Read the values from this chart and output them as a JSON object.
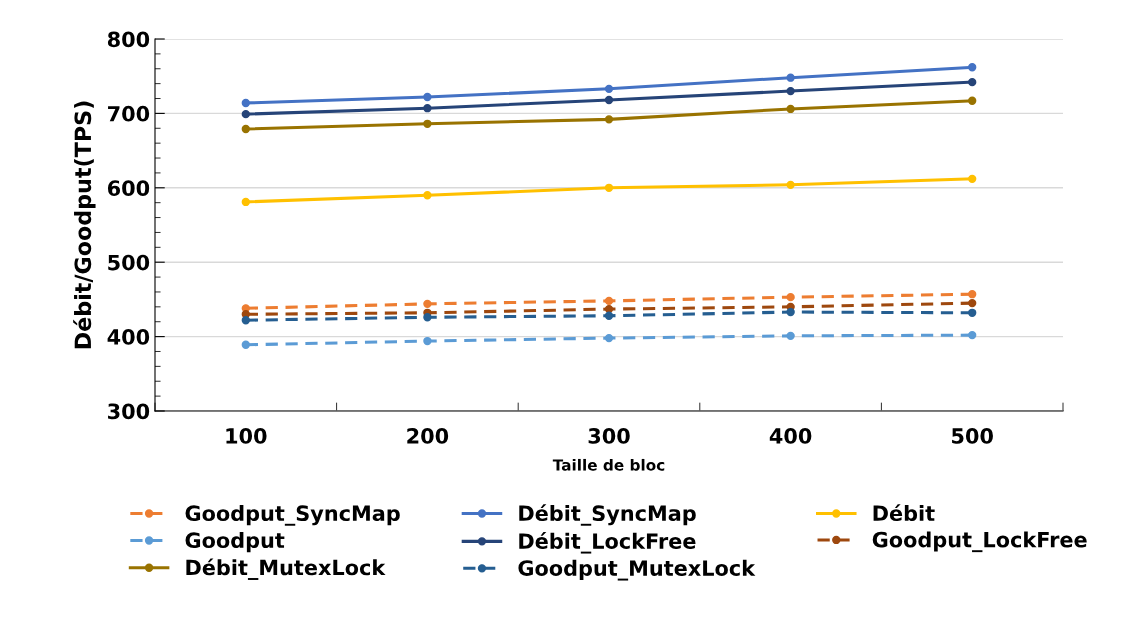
{
  "chart_data": {
    "type": "line",
    "xlabel": "Taille de bloc",
    "ylabel": "Débit/Goodput(TPS)",
    "categories": [
      "100",
      "200",
      "300",
      "400",
      "500"
    ],
    "ylim": [
      300,
      800
    ],
    "yticks": [
      300,
      400,
      500,
      600,
      700,
      800
    ],
    "grid": "y",
    "legend": "bottom",
    "marker": "circle",
    "series": [
      {
        "name": "Goodput_SyncMap",
        "color": "#ed7d31",
        "line_style": "dashed",
        "values": [
          438,
          444,
          448,
          453,
          457
        ]
      },
      {
        "name": "Débit_SyncMap",
        "color": "#4472c4",
        "line_style": "solid",
        "values": [
          714,
          722,
          733,
          748,
          762
        ]
      },
      {
        "name": "Débit",
        "color": "#ffc000",
        "line_style": "solid",
        "values": [
          581,
          590,
          600,
          604,
          612
        ]
      },
      {
        "name": "Goodput",
        "color": "#5b9bd5",
        "line_style": "dashed",
        "values": [
          389,
          394,
          398,
          401,
          402
        ]
      },
      {
        "name": "Débit_LockFree",
        "color": "#264478",
        "line_style": "solid",
        "values": [
          699,
          707,
          718,
          730,
          742
        ]
      },
      {
        "name": "Goodput_LockFree",
        "color": "#9e480e",
        "line_style": "dashed",
        "values": [
          430,
          432,
          437,
          440,
          445
        ]
      },
      {
        "name": "Débit_MutexLock",
        "color": "#997300",
        "line_style": "solid",
        "values": [
          679,
          686,
          692,
          706,
          717
        ]
      },
      {
        "name": "Goodput_MutexLock",
        "color": "#255e91",
        "line_style": "dashed",
        "values": [
          422,
          426,
          428,
          433,
          432
        ]
      }
    ]
  }
}
